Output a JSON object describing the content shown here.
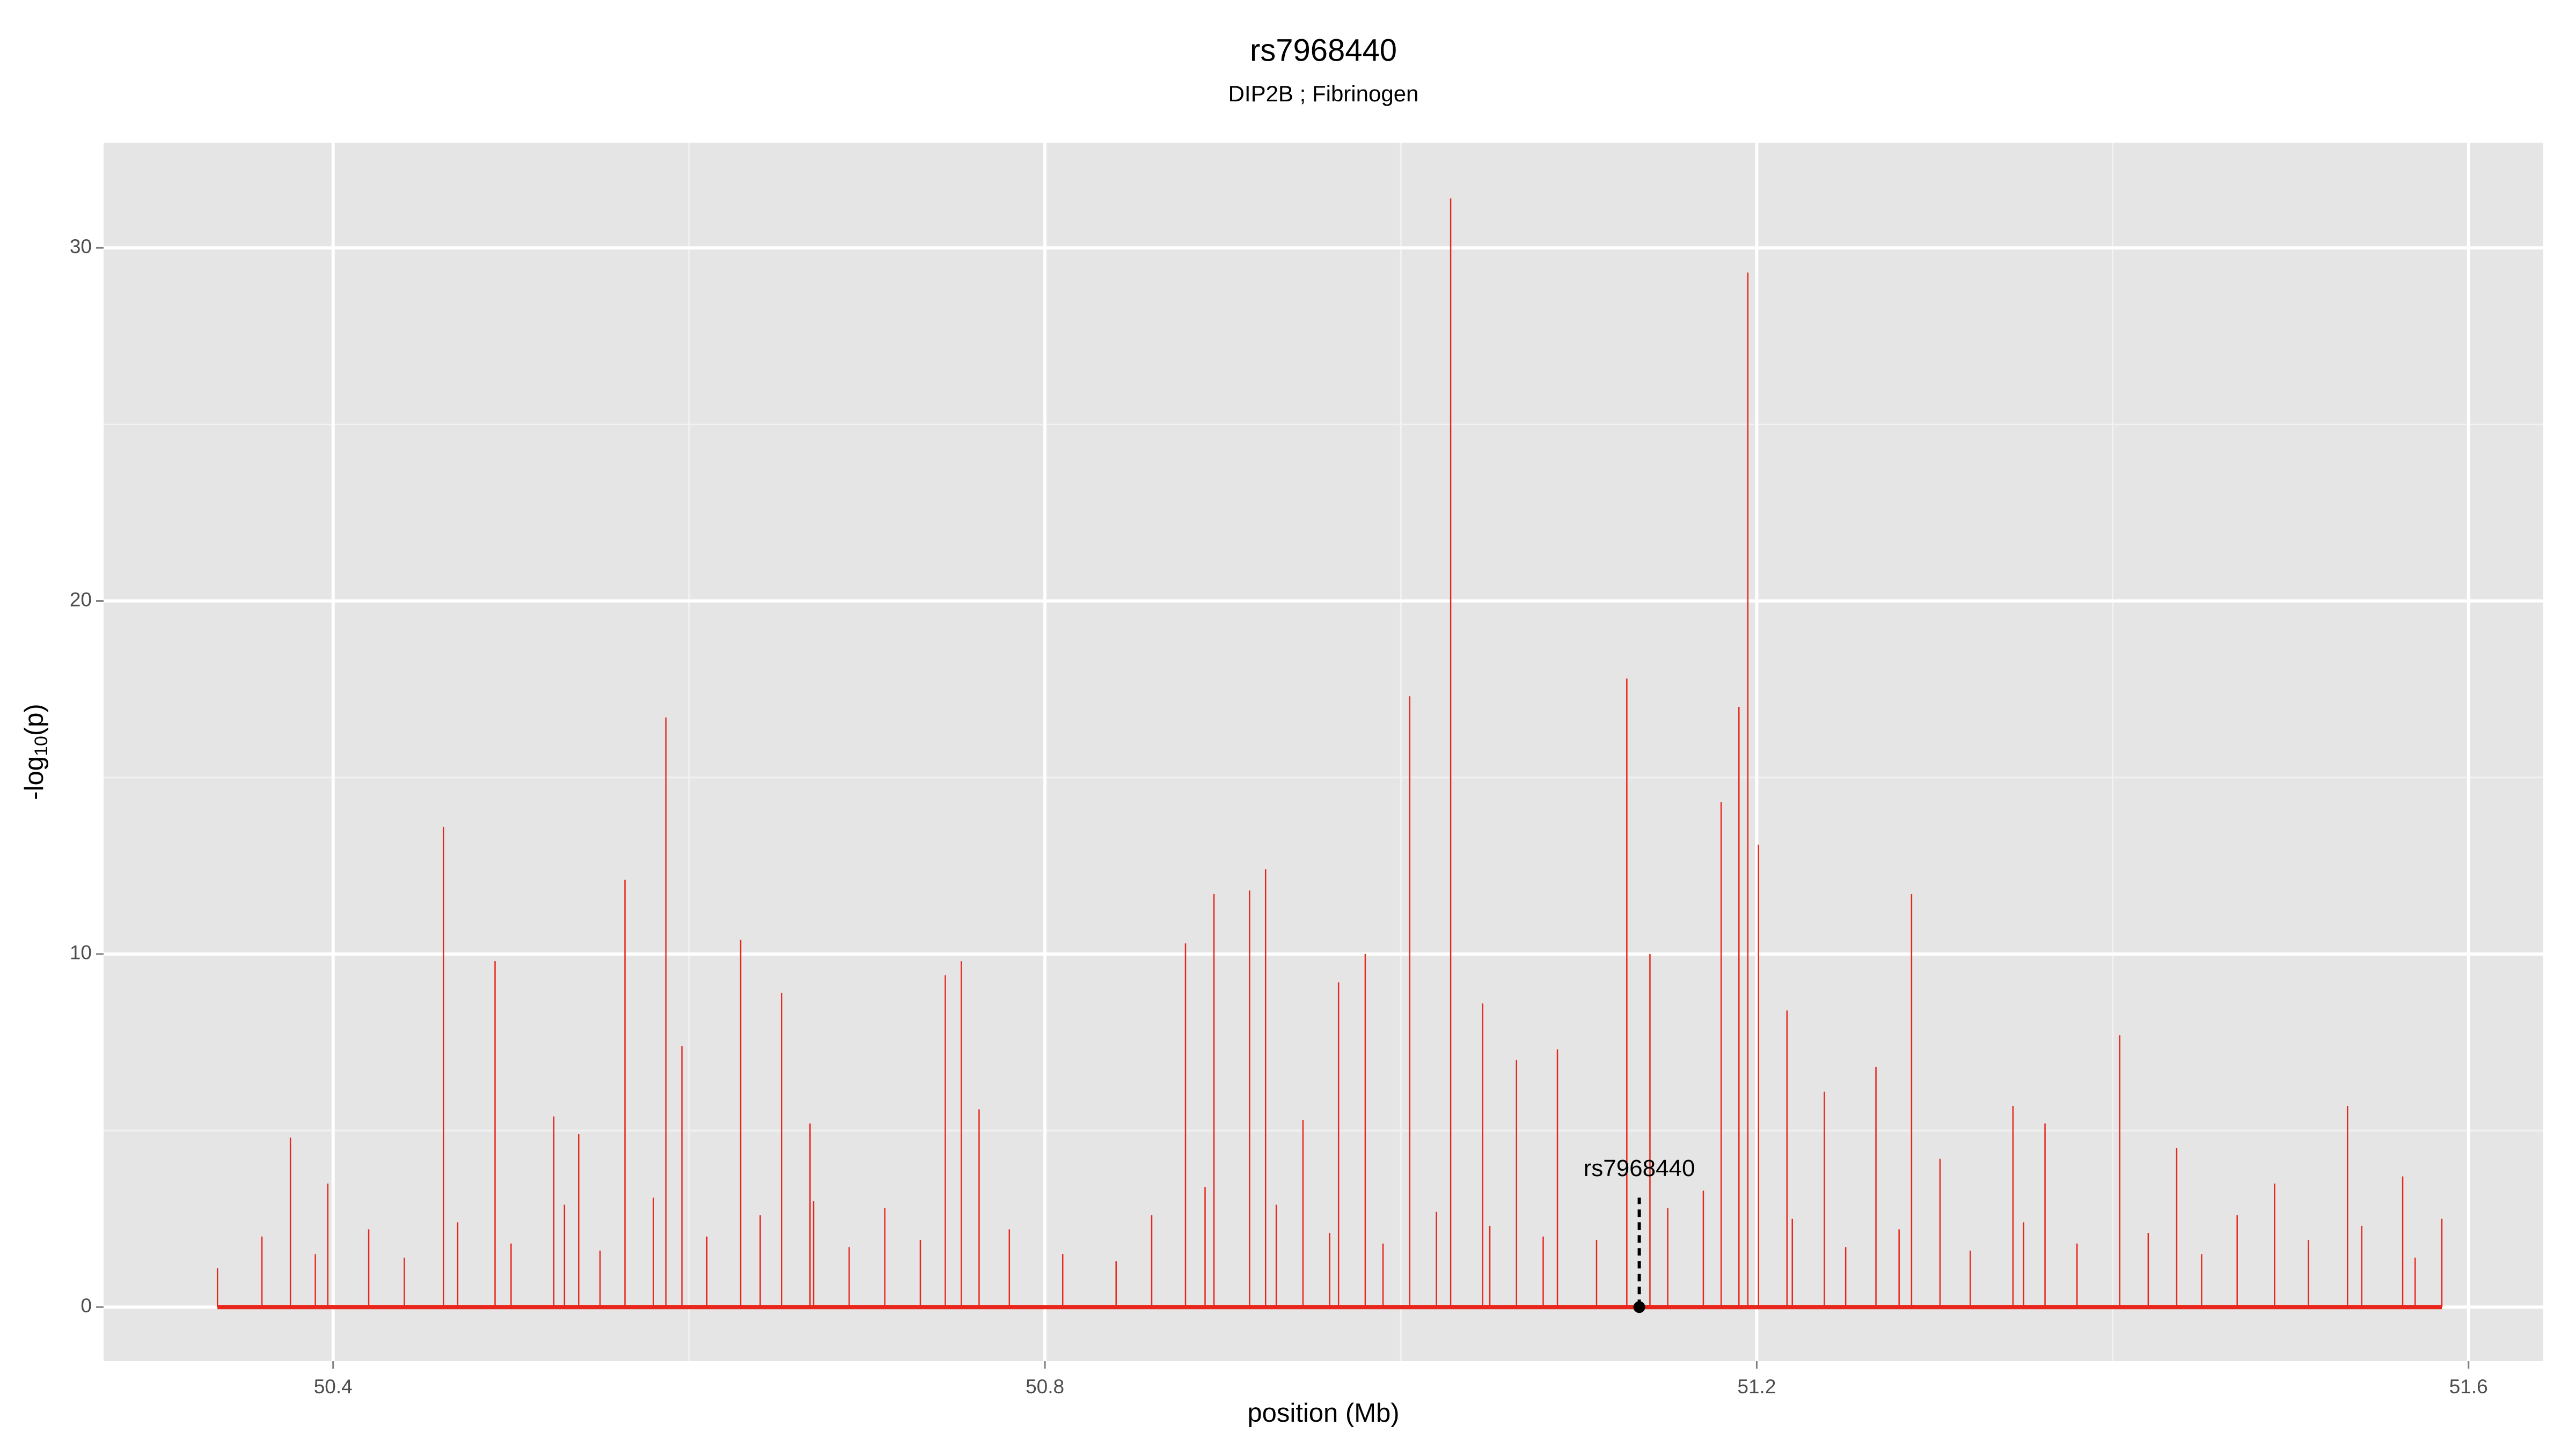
{
  "chart_data": {
    "type": "stem",
    "title": "rs7968440",
    "subtitle": "DIP2B ; Fibrinogen",
    "x_label": "position (Mb)",
    "y_label": {
      "prefix": "-log",
      "sub": "10",
      "suffix": "(p)"
    },
    "color": "#e8261c",
    "x": [
      50.376,
      50.397,
      50.462,
      50.491,
      50.524,
      50.538,
      50.564,
      50.587,
      50.596,
      50.629,
      50.652,
      50.668,
      50.744,
      50.753,
      50.763,
      50.879,
      50.895,
      50.915,
      50.924,
      50.945,
      50.965,
      50.98,
      51.005,
      51.028,
      51.046,
      51.065,
      51.088,
      51.127,
      51.14,
      51.18,
      51.19,
      51.195,
      51.201,
      51.217,
      51.238,
      51.267,
      51.287,
      51.303,
      51.344,
      51.362,
      51.404,
      51.436,
      51.491,
      51.532,
      51.563,
      50.335,
      50.36,
      50.39,
      50.42,
      50.44,
      50.47,
      50.5,
      50.53,
      50.55,
      50.58,
      50.61,
      50.64,
      50.67,
      50.69,
      50.71,
      50.73,
      50.78,
      50.81,
      50.84,
      50.86,
      50.89,
      50.93,
      50.96,
      50.99,
      51.02,
      51.05,
      51.08,
      51.11,
      51.15,
      51.17,
      51.22,
      51.25,
      51.28,
      51.32,
      51.35,
      51.38,
      51.42,
      51.45,
      51.47,
      51.51,
      51.54,
      51.57,
      51.585
    ],
    "values": [
      4.8,
      3.5,
      13.6,
      9.8,
      5.4,
      4.9,
      12.1,
      16.7,
      7.4,
      10.4,
      8.9,
      5.2,
      9.4,
      9.8,
      5.6,
      10.3,
      11.7,
      11.8,
      12.4,
      5.3,
      9.2,
      10.0,
      17.3,
      31.4,
      8.6,
      7.0,
      7.3,
      17.8,
      10.0,
      14.3,
      17.0,
      29.3,
      13.1,
      8.4,
      6.1,
      6.8,
      11.7,
      4.2,
      5.7,
      5.2,
      7.7,
      4.5,
      3.5,
      5.7,
      3.7,
      1.1,
      2.0,
      1.5,
      2.2,
      1.4,
      2.4,
      1.8,
      2.9,
      1.6,
      3.1,
      2.0,
      2.6,
      3.0,
      1.7,
      2.8,
      1.9,
      2.2,
      1.5,
      1.3,
      2.6,
      3.4,
      2.9,
      2.1,
      1.8,
      2.7,
      2.3,
      2.0,
      1.9,
      2.8,
      3.3,
      2.5,
      1.7,
      2.2,
      1.6,
      2.4,
      1.8,
      2.1,
      1.5,
      2.6,
      1.9,
      2.3,
      1.4,
      2.5
    ],
    "annotation": {
      "label": "rs7968440",
      "x": 51.134,
      "y": 3.1
    },
    "xlim": [
      50.271,
      51.642
    ],
    "ylim": [
      -1.53,
      32.98
    ],
    "xticks": [
      50.4,
      50.8,
      51.2,
      51.6
    ],
    "yticks": [
      0,
      10,
      20,
      30
    ],
    "minor_xticks": [
      50.6,
      51.0,
      51.4
    ],
    "minor_yticks": [
      5,
      15,
      25
    ],
    "grid": true
  }
}
